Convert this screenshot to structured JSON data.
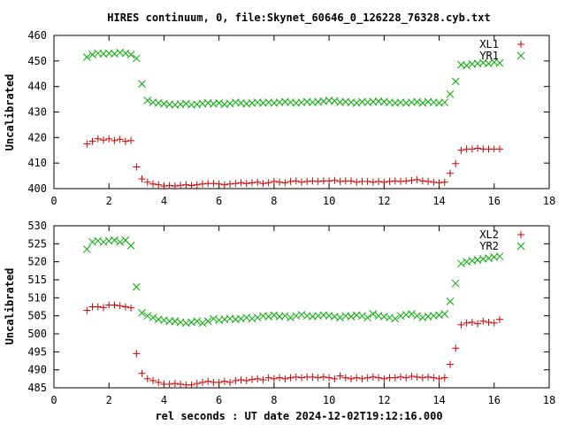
{
  "chart_data": [
    {
      "type": "scatter",
      "title": "HIRES continuum, 0, file:Skynet_60646_0_126228_76328.cyb.txt",
      "xlabel": "",
      "ylabel": "Uncalibrated",
      "xlim": [
        0,
        18
      ],
      "ylim": [
        400,
        460
      ],
      "xticks": [
        0,
        2,
        4,
        6,
        8,
        10,
        12,
        14,
        16,
        18
      ],
      "yticks": [
        400,
        410,
        420,
        430,
        440,
        450,
        460
      ],
      "grid": false,
      "legend": "top-right",
      "series": [
        {
          "name": "XL1",
          "marker": "plus",
          "color": "#cc0000",
          "x": [
            1.2,
            1.4,
            1.6,
            1.8,
            2.0,
            2.2,
            2.4,
            2.6,
            2.8,
            3.0,
            3.2,
            3.4,
            3.6,
            3.8,
            4.0,
            4.2,
            4.4,
            4.6,
            4.8,
            5.0,
            5.2,
            5.4,
            5.6,
            5.8,
            6.0,
            6.2,
            6.4,
            6.6,
            6.8,
            7.0,
            7.2,
            7.4,
            7.6,
            7.8,
            8.0,
            8.2,
            8.4,
            8.6,
            8.8,
            9.0,
            9.2,
            9.4,
            9.6,
            9.8,
            10.0,
            10.2,
            10.4,
            10.6,
            10.8,
            11.0,
            11.2,
            11.4,
            11.6,
            11.8,
            12.0,
            12.2,
            12.4,
            12.6,
            12.8,
            13.0,
            13.2,
            13.4,
            13.6,
            13.8,
            14.0,
            14.2,
            14.4,
            14.6,
            14.8,
            15.0,
            15.2,
            15.4,
            15.6,
            15.8,
            16.0,
            16.2
          ],
          "y": [
            417.5,
            418.5,
            419.5,
            419.0,
            419.5,
            418.8,
            419.3,
            418.5,
            418.8,
            408.5,
            403.8,
            402.5,
            401.8,
            401.5,
            401.0,
            401.2,
            401.0,
            401.3,
            401.5,
            401.2,
            401.5,
            401.8,
            402.0,
            402.0,
            401.8,
            401.5,
            401.8,
            402.0,
            402.3,
            402.0,
            402.3,
            402.5,
            402.0,
            402.3,
            402.8,
            402.5,
            402.3,
            402.8,
            403.0,
            402.5,
            402.8,
            403.0,
            402.8,
            403.0,
            403.0,
            403.2,
            402.8,
            403.0,
            403.0,
            402.5,
            402.8,
            402.8,
            402.5,
            402.8,
            402.5,
            402.8,
            403.0,
            402.8,
            403.0,
            403.2,
            403.5,
            403.0,
            402.8,
            402.5,
            402.3,
            402.5,
            406.0,
            409.8,
            415.0,
            415.5,
            415.5,
            415.8,
            415.5,
            415.5,
            415.5,
            415.5
          ]
        },
        {
          "name": "YR1",
          "marker": "cross",
          "color": "#00aa00",
          "x": [
            1.2,
            1.4,
            1.6,
            1.8,
            2.0,
            2.2,
            2.4,
            2.6,
            2.8,
            3.0,
            3.2,
            3.4,
            3.6,
            3.8,
            4.0,
            4.2,
            4.4,
            4.6,
            4.8,
            5.0,
            5.2,
            5.4,
            5.6,
            5.8,
            6.0,
            6.2,
            6.4,
            6.6,
            6.8,
            7.0,
            7.2,
            7.4,
            7.6,
            7.8,
            8.0,
            8.2,
            8.4,
            8.6,
            8.8,
            9.0,
            9.2,
            9.4,
            9.6,
            9.8,
            10.0,
            10.2,
            10.4,
            10.6,
            10.8,
            11.0,
            11.2,
            11.4,
            11.6,
            11.8,
            12.0,
            12.2,
            12.4,
            12.6,
            12.8,
            13.0,
            13.2,
            13.4,
            13.6,
            13.8,
            14.0,
            14.2,
            14.4,
            14.6,
            14.8,
            15.0,
            15.2,
            15.4,
            15.6,
            15.8,
            16.0,
            16.2
          ],
          "y": [
            451.5,
            452.5,
            453.0,
            452.8,
            453.0,
            452.8,
            453.3,
            453.0,
            452.5,
            451.0,
            441.0,
            434.5,
            433.8,
            433.5,
            433.2,
            433.0,
            432.8,
            433.0,
            433.3,
            432.8,
            433.0,
            433.3,
            433.5,
            433.2,
            433.5,
            433.0,
            433.3,
            433.8,
            433.5,
            433.2,
            433.5,
            433.8,
            433.5,
            433.8,
            433.5,
            433.8,
            434.0,
            433.8,
            433.5,
            433.8,
            434.0,
            433.8,
            434.0,
            434.2,
            434.5,
            434.3,
            433.8,
            434.0,
            433.8,
            433.5,
            434.0,
            433.8,
            434.0,
            434.2,
            434.0,
            433.8,
            433.5,
            433.8,
            433.5,
            433.8,
            434.0,
            433.5,
            434.0,
            433.8,
            433.5,
            433.8,
            437.0,
            442.0,
            448.5,
            448.2,
            448.8,
            449.0,
            449.3,
            449.0,
            449.5,
            449.2
          ]
        }
      ]
    },
    {
      "type": "scatter",
      "title": "",
      "xlabel": "rel seconds : UT date 2024-12-02T19:12:16.000",
      "ylabel": "Uncalibrated",
      "xlim": [
        0,
        18
      ],
      "ylim": [
        485,
        530
      ],
      "xticks": [
        0,
        2,
        4,
        6,
        8,
        10,
        12,
        14,
        16,
        18
      ],
      "yticks": [
        485,
        490,
        495,
        500,
        505,
        510,
        515,
        520,
        525,
        530
      ],
      "grid": false,
      "legend": "top-right",
      "series": [
        {
          "name": "XL2",
          "marker": "plus",
          "color": "#cc0000",
          "x": [
            1.2,
            1.4,
            1.6,
            1.8,
            2.0,
            2.2,
            2.4,
            2.6,
            2.8,
            3.0,
            3.2,
            3.4,
            3.6,
            3.8,
            4.0,
            4.2,
            4.4,
            4.6,
            4.8,
            5.0,
            5.2,
            5.4,
            5.6,
            5.8,
            6.0,
            6.2,
            6.4,
            6.6,
            6.8,
            7.0,
            7.2,
            7.4,
            7.6,
            7.8,
            8.0,
            8.2,
            8.4,
            8.6,
            8.8,
            9.0,
            9.2,
            9.4,
            9.6,
            9.8,
            10.0,
            10.2,
            10.4,
            10.6,
            10.8,
            11.0,
            11.2,
            11.4,
            11.6,
            11.8,
            12.0,
            12.2,
            12.4,
            12.6,
            12.8,
            13.0,
            13.2,
            13.4,
            13.6,
            13.8,
            14.0,
            14.2,
            14.4,
            14.6,
            14.8,
            15.0,
            15.2,
            15.4,
            15.6,
            15.8,
            16.0,
            16.2
          ],
          "y": [
            506.5,
            507.5,
            507.5,
            507.3,
            508.0,
            508.0,
            507.8,
            507.5,
            507.2,
            494.5,
            489.0,
            487.5,
            487.0,
            486.5,
            486.0,
            486.0,
            486.2,
            486.0,
            485.8,
            485.8,
            486.2,
            486.5,
            486.8,
            486.5,
            486.5,
            486.8,
            486.5,
            487.0,
            487.2,
            487.0,
            487.3,
            487.5,
            487.2,
            487.8,
            487.5,
            487.8,
            487.5,
            487.8,
            488.0,
            487.8,
            488.0,
            488.0,
            487.8,
            488.0,
            487.8,
            487.5,
            488.3,
            487.8,
            487.5,
            487.8,
            487.5,
            487.8,
            488.0,
            487.8,
            487.5,
            487.8,
            487.8,
            488.0,
            487.8,
            488.2,
            488.0,
            487.8,
            488.0,
            487.8,
            487.5,
            487.8,
            491.5,
            496.0,
            502.5,
            503.0,
            503.2,
            502.8,
            503.5,
            503.2,
            503.0,
            504.0
          ]
        },
        {
          "name": "YR2",
          "marker": "cross",
          "color": "#00aa00",
          "x": [
            1.2,
            1.4,
            1.6,
            1.8,
            2.0,
            2.2,
            2.4,
            2.6,
            2.8,
            3.0,
            3.2,
            3.4,
            3.6,
            3.8,
            4.0,
            4.2,
            4.4,
            4.6,
            4.8,
            5.0,
            5.2,
            5.4,
            5.6,
            5.8,
            6.0,
            6.2,
            6.4,
            6.6,
            6.8,
            7.0,
            7.2,
            7.4,
            7.6,
            7.8,
            8.0,
            8.2,
            8.4,
            8.6,
            8.8,
            9.0,
            9.2,
            9.4,
            9.6,
            9.8,
            10.0,
            10.2,
            10.4,
            10.6,
            10.8,
            11.0,
            11.2,
            11.4,
            11.6,
            11.8,
            12.0,
            12.2,
            12.4,
            12.6,
            12.8,
            13.0,
            13.2,
            13.4,
            13.6,
            13.8,
            14.0,
            14.2,
            14.4,
            14.6,
            14.8,
            15.0,
            15.2,
            15.4,
            15.6,
            15.8,
            16.0,
            16.2
          ],
          "y": [
            523.5,
            525.5,
            525.8,
            525.5,
            525.8,
            526.0,
            525.5,
            526.0,
            524.5,
            513.0,
            505.8,
            505.0,
            504.5,
            504.0,
            503.8,
            503.5,
            503.5,
            503.2,
            503.0,
            503.2,
            503.5,
            503.0,
            503.5,
            504.2,
            503.8,
            504.0,
            504.2,
            504.0,
            504.2,
            504.5,
            504.2,
            504.5,
            505.0,
            504.8,
            505.2,
            504.8,
            505.0,
            504.5,
            505.0,
            505.3,
            505.0,
            504.8,
            505.0,
            505.2,
            505.0,
            504.8,
            504.5,
            505.0,
            504.8,
            505.2,
            505.0,
            504.5,
            505.5,
            505.0,
            504.8,
            504.5,
            504.2,
            505.0,
            505.3,
            505.5,
            505.0,
            504.5,
            504.8,
            505.0,
            505.2,
            505.5,
            509.0,
            514.0,
            519.5,
            520.0,
            520.3,
            520.5,
            520.8,
            521.0,
            521.3,
            521.5
          ]
        }
      ]
    }
  ]
}
